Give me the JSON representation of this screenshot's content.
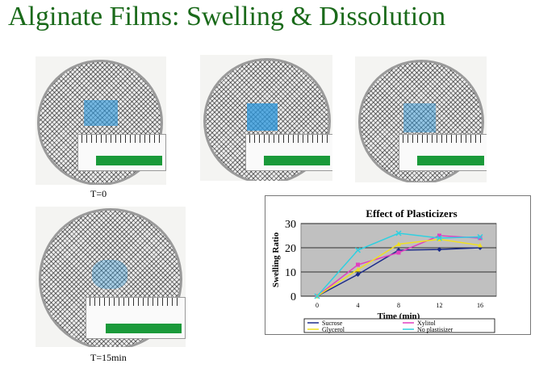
{
  "title": "Alginate Films: Swelling & Dissolution",
  "captions": {
    "t0": "T=0",
    "t15": "T=15min"
  },
  "colors": {
    "title": "#1a6a1a",
    "film": "#2896dc",
    "ruler_green": "#1a9a3a"
  },
  "chart_data": {
    "type": "line",
    "title": "Effect of Plasticizers",
    "xlabel": "Time (min)",
    "ylabel": "Swelling Ratio",
    "x": [
      0,
      4,
      8,
      12,
      16
    ],
    "xticks": [
      "0",
      "4",
      "8",
      "12",
      "16"
    ],
    "yticks": [
      "0",
      "10",
      "20",
      "30"
    ],
    "ylim": [
      0,
      30
    ],
    "grid": "horizontal",
    "legend_position": "bottom",
    "series": [
      {
        "name": "Sucrose",
        "color": "#1a2a8a",
        "marker": "diamond",
        "values": [
          0,
          9,
          19,
          19.3,
          20
        ]
      },
      {
        "name": "Xylitol",
        "color": "#e040c0",
        "marker": "square",
        "values": [
          0,
          13,
          18,
          25,
          24
        ]
      },
      {
        "name": "Glycerol",
        "color": "#f0e020",
        "marker": "triangle",
        "values": [
          0,
          11,
          21.5,
          23.5,
          21
        ]
      },
      {
        "name": "No plastisizer",
        "color": "#30d0e0",
        "marker": "x",
        "values": [
          0,
          19,
          26,
          24,
          24.5
        ]
      }
    ]
  }
}
